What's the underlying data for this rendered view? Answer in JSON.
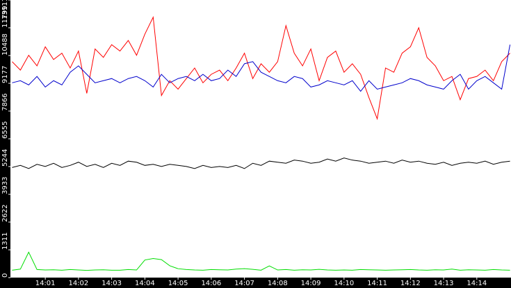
{
  "chart_data": {
    "type": "line",
    "x": [
      0,
      0.25,
      0.5,
      0.75,
      1,
      1.25,
      1.5,
      1.75,
      2,
      2.25,
      2.5,
      2.75,
      3,
      3.25,
      3.5,
      3.75,
      4,
      4.25,
      4.5,
      4.75,
      5,
      5.25,
      5.5,
      5.75,
      6,
      6.25,
      6.5,
      6.75,
      7,
      7.25,
      7.5,
      7.75,
      8,
      8.25,
      8.5,
      8.75,
      9,
      9.25,
      9.5,
      9.75,
      10,
      10.25,
      10.5,
      10.75,
      11,
      11.25,
      11.5,
      11.75,
      12,
      12.25,
      12.5,
      12.75,
      13,
      13.25,
      13.5,
      13.75,
      14,
      14.25,
      14.5,
      14.75,
      15
    ],
    "xlim": [
      -0.05,
      15.03
    ],
    "xticks": [
      {
        "value": 1,
        "label": "14:01"
      },
      {
        "value": 2,
        "label": "14:02"
      },
      {
        "value": 3,
        "label": "14:03"
      },
      {
        "value": 4,
        "label": "14:04"
      },
      {
        "value": 5,
        "label": "14:05"
      },
      {
        "value": 6,
        "label": "14:06"
      },
      {
        "value": 7,
        "label": "14:07"
      },
      {
        "value": 8,
        "label": "14:08"
      },
      {
        "value": 9,
        "label": "14:09"
      },
      {
        "value": 10,
        "label": "14:10"
      },
      {
        "value": 11,
        "label": "14:11"
      },
      {
        "value": 12,
        "label": "14:12"
      },
      {
        "value": 13,
        "label": "14:13"
      },
      {
        "value": 14,
        "label": "14:14"
      }
    ],
    "ylim": [
      0,
      13111
    ],
    "yticks": [
      0,
      1311,
      2622,
      3933,
      5244,
      6555,
      7866,
      9177,
      10488,
      11799,
      13111
    ],
    "series": [
      {
        "color": "#ff0000",
        "values": [
          10200,
          9800,
          10500,
          10000,
          10900,
          10300,
          10600,
          9900,
          10700,
          8700,
          10800,
          10400,
          11000,
          10700,
          11200,
          10500,
          11500,
          12300,
          8600,
          9300,
          8900,
          9400,
          9900,
          9200,
          9600,
          9800,
          9300,
          9900,
          10600,
          9400,
          10100,
          9700,
          10200,
          11900,
          10600,
          10000,
          10800,
          9300,
          10400,
          10700,
          9700,
          10100,
          9600,
          8500,
          7500,
          9900,
          9700,
          10600,
          10900,
          11800,
          10400,
          10000,
          9300,
          9500,
          8400,
          9400,
          9500,
          9800,
          9300,
          10200,
          10600
        ]
      },
      {
        "color": "#0000cc",
        "values": [
          9200,
          9300,
          9100,
          9500,
          9000,
          9300,
          9100,
          9700,
          10000,
          9600,
          9200,
          9300,
          9400,
          9200,
          9400,
          9500,
          9300,
          9000,
          9600,
          9200,
          9400,
          9500,
          9300,
          9600,
          9300,
          9400,
          9800,
          9500,
          10100,
          10200,
          9700,
          9500,
          9300,
          9200,
          9500,
          9400,
          9000,
          9100,
          9300,
          9200,
          9100,
          9300,
          8800,
          9300,
          8900,
          9000,
          9100,
          9200,
          9400,
          9300,
          9100,
          9000,
          8900,
          9300,
          9600,
          8900,
          9300,
          9500,
          9200,
          8900,
          11000
        ]
      },
      {
        "color": "#000000",
        "values": [
          5200,
          5300,
          5150,
          5350,
          5250,
          5400,
          5200,
          5300,
          5450,
          5250,
          5350,
          5200,
          5400,
          5300,
          5500,
          5450,
          5300,
          5350,
          5250,
          5350,
          5300,
          5250,
          5150,
          5300,
          5200,
          5250,
          5200,
          5300,
          5150,
          5400,
          5300,
          5500,
          5450,
          5400,
          5550,
          5500,
          5400,
          5450,
          5600,
          5500,
          5650,
          5550,
          5500,
          5400,
          5450,
          5500,
          5400,
          5550,
          5450,
          5500,
          5400,
          5350,
          5450,
          5300,
          5400,
          5450,
          5400,
          5500,
          5350,
          5450,
          5500
        ]
      },
      {
        "color": "#00dd00",
        "values": [
          350,
          400,
          1200,
          380,
          360,
          370,
          350,
          380,
          360,
          340,
          360,
          370,
          350,
          350,
          380,
          360,
          830,
          900,
          850,
          560,
          420,
          380,
          360,
          350,
          380,
          370,
          360,
          400,
          420,
          390,
          350,
          550,
          360,
          380,
          350,
          370,
          360,
          390,
          360,
          350,
          360,
          350,
          380,
          370,
          360,
          350,
          360,
          370,
          380,
          360,
          350,
          370,
          360,
          400,
          350,
          370,
          360,
          350,
          380,
          360,
          350
        ]
      }
    ]
  }
}
